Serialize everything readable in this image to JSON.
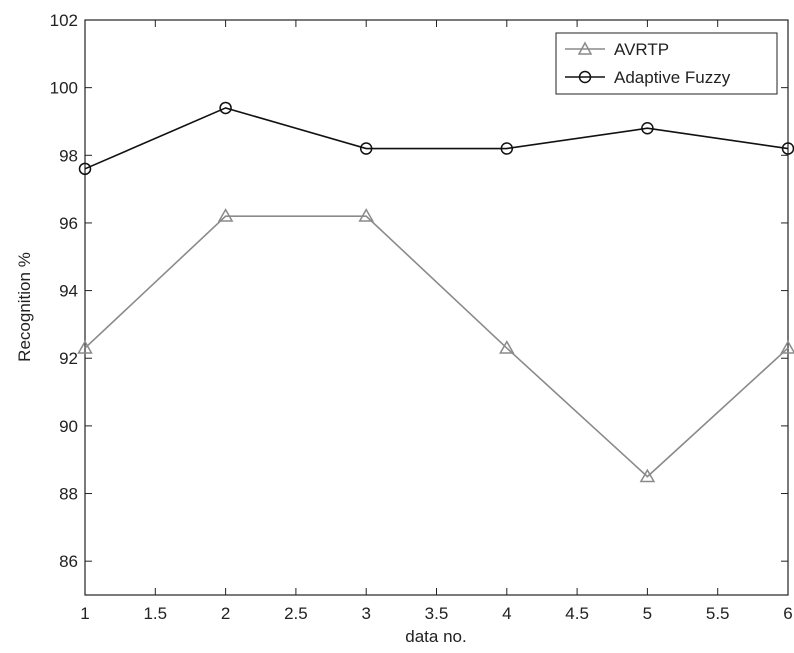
{
  "chart_data": {
    "type": "line",
    "title": "",
    "xlabel": "data no.",
    "ylabel": "Recognition %",
    "xlim": [
      1,
      6
    ],
    "ylim": [
      85,
      102
    ],
    "xticks": [
      1,
      1.5,
      2,
      2.5,
      3,
      3.5,
      4,
      4.5,
      5,
      5.5,
      6
    ],
    "xtick_labels": [
      "1",
      "1.5",
      "2",
      "2.5",
      "3",
      "3.5",
      "4",
      "4.5",
      "5",
      "5.5",
      "6"
    ],
    "yticks": [
      86,
      88,
      90,
      92,
      94,
      96,
      98,
      100,
      102
    ],
    "ytick_labels": [
      "86",
      "88",
      "90",
      "92",
      "94",
      "96",
      "98",
      "100",
      "102"
    ],
    "grid": false,
    "legend_position": "top-right",
    "x": [
      1,
      2,
      3,
      4,
      5,
      6
    ],
    "series": [
      {
        "name": "AVRTP",
        "values": [
          92.3,
          96.2,
          96.2,
          92.3,
          88.5,
          92.3
        ],
        "color": "#8a8a8a",
        "marker": "triangle"
      },
      {
        "name": "Adaptive Fuzzy",
        "values": [
          97.6,
          99.4,
          98.2,
          98.2,
          98.8,
          98.2
        ],
        "color": "#111111",
        "marker": "circle"
      }
    ]
  }
}
